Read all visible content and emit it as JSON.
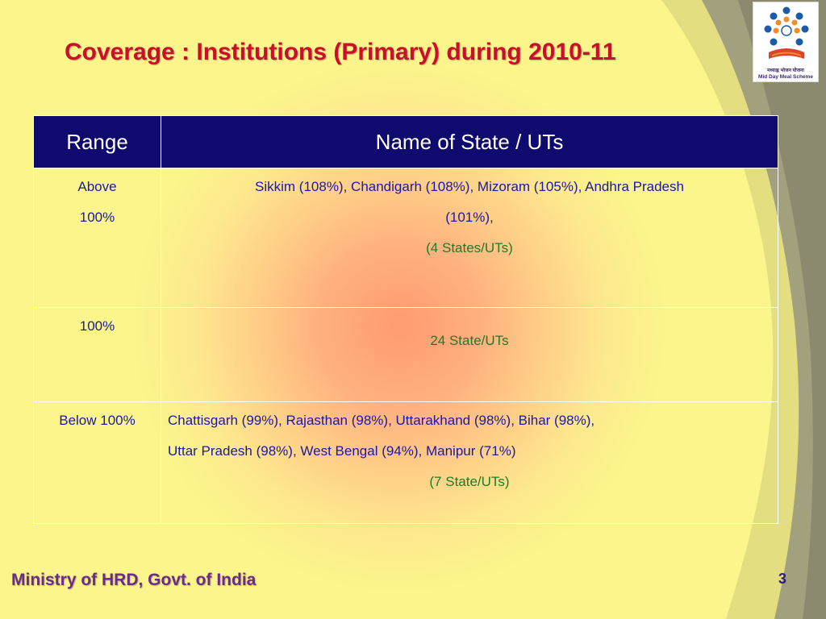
{
  "slide": {
    "title": "Coverage : Institutions (Primary) during 2010-11",
    "footer": "Ministry of HRD, Govt. of India",
    "page_number": "3"
  },
  "logo": {
    "hindi_text": "मध्याह्न भोजन योजना",
    "english_text": "Mid Day Meal Scheme"
  },
  "table": {
    "headers": [
      "Range",
      "Name of State / UTs"
    ],
    "rows": [
      {
        "range_line1": "Above",
        "range_line2": "100%",
        "states_line1": "Sikkim (108%),  Chandigarh (108%),  Mizoram (105%),  Andhra  Pradesh",
        "states_line2": "(101%),",
        "count": "(4 States/UTs)"
      },
      {
        "range_line1": "100%",
        "count": "24 State/UTs"
      },
      {
        "range_line1": "Below 100%",
        "states_line1": "Chattisgarh (99%), Rajasthan (98%),  Uttarakhand (98%),  Bihar (98%),",
        "states_line2": "Uttar Pradesh (98%), West Bengal (94%), Manipur (71%)",
        "count": "(7 State/UTs)"
      }
    ]
  },
  "colors": {
    "title": "#c8102e",
    "header_bg": "#0f0a6e",
    "cell_text": "#1a1a9e",
    "count_text": "#1f7a2a",
    "footer_text": "#6b2a8c"
  }
}
